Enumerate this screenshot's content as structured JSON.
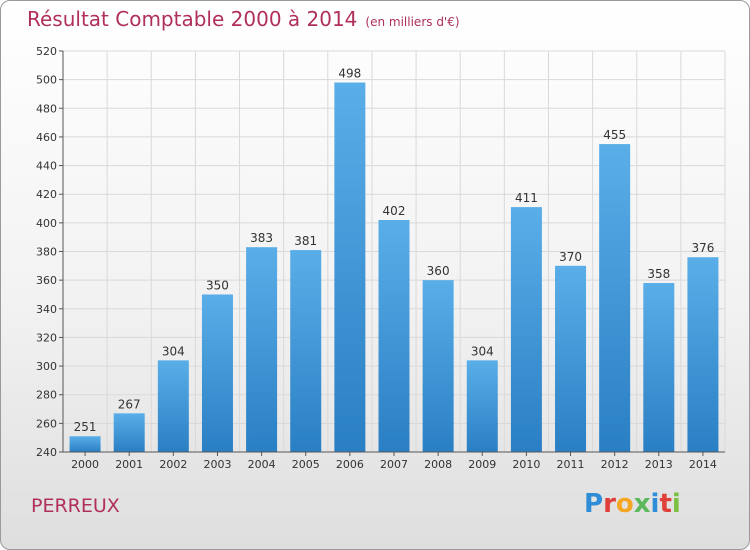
{
  "header": {
    "title": "Résultat Comptable 2000 à 2014",
    "unit": "(en milliers d'€)"
  },
  "footer": {
    "place": "PERREUX",
    "logo_letters": [
      "P",
      "r",
      "o",
      "x",
      "i",
      "t",
      "i"
    ],
    "logo_colors": [
      "#2e8dd6",
      "#e0403a",
      "#f5a623",
      "#5cb85c",
      "#2e8dd6",
      "#e0403a",
      "#7cc142"
    ]
  },
  "colors": {
    "title": "#b0305a",
    "bar_light": "#5aaee8",
    "bar_dark": "#2a7fc4",
    "grid": "#d9d9d9"
  },
  "chart_data": {
    "type": "bar",
    "categories": [
      "2000",
      "2001",
      "2002",
      "2003",
      "2004",
      "2005",
      "2006",
      "2007",
      "2008",
      "2009",
      "2010",
      "2011",
      "2012",
      "2013",
      "2014"
    ],
    "values": [
      251,
      267,
      304,
      350,
      383,
      381,
      498,
      402,
      360,
      304,
      411,
      370,
      455,
      358,
      376
    ],
    "yticks": [
      240,
      260,
      280,
      300,
      320,
      340,
      360,
      380,
      400,
      420,
      440,
      460,
      480,
      500,
      520
    ],
    "ylim": [
      240,
      520
    ],
    "grid": true,
    "legend": "none"
  }
}
